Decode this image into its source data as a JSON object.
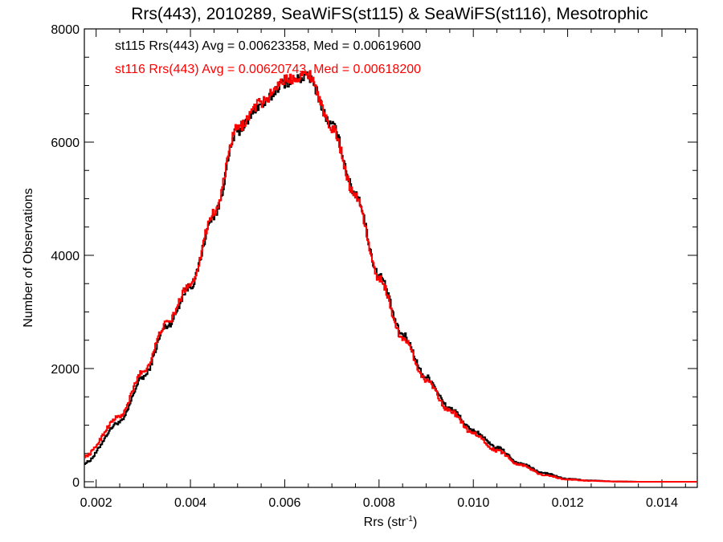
{
  "chart_data": {
    "type": "line",
    "title": "Rrs(443), 2010289, SeaWiFS(st115) & SeaWiFS(st116), Mesotrophic",
    "xlabel_main": "Rrs (str",
    "xlabel_sup": "-1",
    "xlabel_tail": ")",
    "ylabel": "Number of Observations",
    "xlim": [
      0.00175,
      0.01475
    ],
    "ylim": [
      -100,
      8000
    ],
    "x_ticks": [
      0.002,
      0.004,
      0.006,
      0.008,
      0.01,
      0.012,
      0.014
    ],
    "x_tick_labels": [
      "0.002",
      "0.004",
      "0.006",
      "0.008",
      "0.010",
      "0.012",
      "0.014"
    ],
    "y_ticks": [
      0,
      2000,
      4000,
      6000,
      8000
    ],
    "y_tick_labels": [
      "0",
      "2000",
      "4000",
      "6000",
      "8000"
    ],
    "grid": false,
    "annotations": [
      "st115 Rrs(443) Avg = 0.00623358, Med = 0.00619600",
      "st116 Rrs(443) Avg = 0.00620743, Med = 0.00618200"
    ],
    "series": [
      {
        "color": "#000000",
        "x": [
          0.00175,
          0.0025,
          0.003,
          0.0035,
          0.004,
          0.0045,
          0.005,
          0.0055,
          0.006,
          0.0065,
          0.007,
          0.0075,
          0.008,
          0.0085,
          0.009,
          0.0095,
          0.01,
          0.0105,
          0.011,
          0.0115,
          0.012,
          0.0125,
          0.013,
          0.0135,
          0.014,
          0.01475
        ],
        "y": [
          330,
          1050,
          1850,
          2750,
          3450,
          4700,
          6200,
          6650,
          7050,
          7150,
          6300,
          5100,
          3650,
          2600,
          1850,
          1300,
          900,
          600,
          320,
          150,
          50,
          20,
          5,
          0,
          0,
          0
        ]
      },
      {
        "color": "#ff0000",
        "x": [
          0.00175,
          0.0025,
          0.003,
          0.0035,
          0.004,
          0.0045,
          0.005,
          0.0055,
          0.006,
          0.0065,
          0.007,
          0.0075,
          0.008,
          0.0085,
          0.009,
          0.0095,
          0.01,
          0.0105,
          0.011,
          0.0115,
          0.012,
          0.0125,
          0.013,
          0.0135,
          0.014,
          0.01475
        ],
        "y": [
          450,
          1150,
          1950,
          2800,
          3500,
          4750,
          6250,
          6700,
          7100,
          7200,
          6250,
          5050,
          3600,
          2550,
          1800,
          1250,
          850,
          550,
          300,
          120,
          40,
          15,
          5,
          0,
          0,
          0
        ]
      }
    ]
  }
}
